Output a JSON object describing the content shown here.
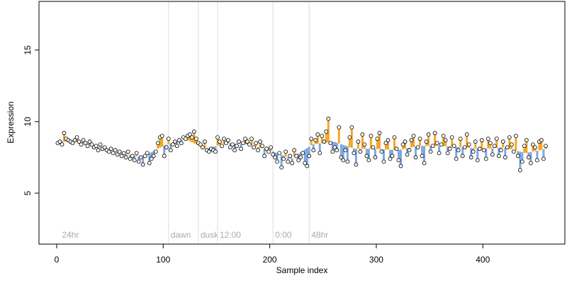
{
  "chart_data": {
    "type": "scatter",
    "xlabel": "Sample index",
    "ylabel": "Expression",
    "xlim": [
      -16.6,
      477
    ],
    "ylim": [
      1.44,
      18.4
    ],
    "xticks": [
      0,
      100,
      200,
      300,
      400
    ],
    "yticks": [
      5,
      10,
      15
    ],
    "point_color": "#000000",
    "above_color": "#f5a623",
    "below_color": "#7ea8e0",
    "vline_color": "#dddddd",
    "x": [
      1,
      3,
      5,
      7,
      9,
      11,
      13,
      15,
      17,
      19,
      21,
      23,
      25,
      27,
      29,
      31,
      33,
      35,
      37,
      39,
      41,
      43,
      45,
      47,
      49,
      51,
      53,
      55,
      57,
      59,
      61,
      63,
      65,
      67,
      69,
      71,
      73,
      75,
      77,
      79,
      81,
      83,
      85,
      87,
      89,
      91,
      93,
      95,
      97,
      99,
      101,
      103,
      105,
      107,
      109,
      111,
      113,
      115,
      117,
      119,
      121,
      123,
      125,
      127,
      129,
      131,
      133,
      135,
      137,
      139,
      141,
      143,
      145,
      147,
      149,
      151,
      153,
      155,
      157,
      159,
      161,
      163,
      165,
      167,
      169,
      171,
      173,
      175,
      177,
      179,
      181,
      183,
      185,
      187,
      189,
      191,
      193,
      195,
      197,
      199,
      201,
      203,
      205,
      207,
      209,
      211,
      213,
      215,
      217,
      219,
      221,
      223,
      225,
      227,
      229,
      231,
      233,
      235,
      237,
      239,
      241,
      243,
      245,
      247,
      249,
      251,
      253,
      255,
      257,
      259,
      261,
      263,
      265,
      267,
      269,
      271,
      273,
      275,
      277,
      279,
      281,
      283,
      285,
      287,
      289,
      291,
      293,
      295,
      297,
      299,
      301,
      303,
      305,
      307,
      309,
      311,
      313,
      315,
      317,
      319,
      321,
      323,
      325,
      327,
      329,
      331,
      333,
      335,
      337,
      339,
      341,
      343,
      345,
      347,
      349,
      351,
      353,
      355,
      357,
      359,
      361,
      363,
      365,
      367,
      369,
      371,
      373,
      375,
      377,
      379,
      381,
      383,
      385,
      387,
      389,
      391,
      393,
      395,
      397,
      399,
      401,
      403,
      405,
      407,
      409,
      411,
      413,
      415,
      417,
      419,
      421,
      423,
      425,
      427,
      429,
      431,
      433,
      435,
      437,
      439,
      441,
      443,
      445,
      447,
      449,
      451,
      453,
      455,
      457,
      459
    ],
    "values": [
      8.5,
      8.6,
      8.4,
      9.2,
      8.8,
      8.7,
      8.6,
      8.5,
      8.7,
      8.9,
      8.6,
      8.4,
      8.7,
      8.5,
      8.3,
      8.6,
      8.4,
      8.2,
      8.3,
      8.0,
      8.4,
      8.1,
      8.2,
      8.0,
      7.9,
      8.1,
      7.8,
      8.0,
      7.7,
      7.9,
      7.6,
      7.8,
      7.5,
      7.9,
      7.4,
      7.6,
      7.3,
      7.8,
      7.2,
      7.5,
      7.0,
      7.6,
      7.8,
      7.1,
      7.4,
      7.6,
      7.9,
      8.5,
      8.9,
      9.0,
      7.6,
      8.2,
      8.8,
      8.0,
      8.4,
      8.6,
      8.3,
      8.7,
      8.5,
      8.9,
      8.8,
      9.0,
      9.1,
      8.9,
      9.3,
      8.8,
      8.5,
      8.4,
      8.2,
      8.6,
      8.0,
      7.9,
      8.1,
      8.0,
      7.9,
      8.9,
      8.6,
      8.3,
      8.8,
      8.5,
      8.7,
      8.2,
      8.4,
      8.0,
      8.3,
      8.6,
      8.1,
      8.5,
      8.8,
      8.6,
      8.4,
      8.8,
      8.2,
      8.5,
      8.0,
      8.6,
      8.3,
      7.6,
      8.1,
      7.9,
      8.2,
      7.7,
      7.5,
      7.2,
      7.8,
      6.8,
      7.4,
      7.9,
      7.2,
      7.6,
      7.1,
      8.0,
      7.6,
      7.3,
      7.5,
      7.8,
      7.1,
      6.9,
      7.6,
      8.8,
      8.0,
      8.7,
      9.1,
      7.8,
      9.0,
      8.6,
      9.3,
      10.2,
      8.5,
      7.9,
      8.2,
      8.0,
      9.6,
      7.5,
      7.3,
      8.0,
      7.2,
      8.9,
      9.6,
      7.8,
      7.0,
      8.6,
      7.9,
      9.1,
      8.4,
      7.6,
      7.3,
      9.0,
      8.2,
      7.5,
      8.8,
      9.2,
      7.9,
      7.2,
      8.5,
      8.7,
      7.4,
      7.6,
      8.9,
      8.1,
      7.3,
      6.9,
      8.4,
      8.6,
      7.7,
      8.0,
      8.7,
      9.0,
      7.5,
      8.2,
      8.8,
      7.6,
      7.1,
      8.6,
      9.1,
      7.9,
      8.3,
      9.2,
      8.5,
      7.8,
      8.4,
      9.0,
      8.7,
      7.8,
      8.1,
      8.9,
      8.3,
      7.4,
      8.0,
      8.8,
      7.6,
      8.2,
      9.1,
      8.4,
      7.5,
      7.9,
      8.6,
      7.3,
      8.1,
      8.7,
      8.0,
      7.4,
      8.8,
      8.5,
      7.7,
      8.3,
      8.8,
      7.6,
      8.0,
      8.6,
      7.5,
      8.2,
      8.9,
      8.4,
      7.9,
      9.0,
      7.6,
      6.6,
      7.2,
      8.3,
      8.7,
      7.5,
      7.1,
      8.4,
      8.2,
      7.3,
      8.6,
      8.7,
      7.4,
      8.3
    ],
    "trend": {
      "x": [
        0,
        20,
        40,
        60,
        80,
        100,
        120,
        140,
        160,
        180,
        200,
        220,
        240,
        260,
        280,
        300,
        320,
        340,
        360,
        380,
        400,
        420,
        440,
        460
      ],
      "values": [
        8.6,
        8.6,
        8.2,
        7.8,
        7.5,
        8.3,
        8.8,
        8.1,
        8.5,
        8.4,
        8.0,
        7.4,
        8.4,
        8.6,
        8.1,
        8.1,
        8.0,
        8.3,
        8.3,
        8.2,
        8.1,
        8.2,
        7.8,
        8.1
      ]
    },
    "annotations": [
      {
        "x": 3,
        "label": "24hr",
        "vline": false
      },
      {
        "x": 105,
        "label": "dawn",
        "vline": true
      },
      {
        "x": 133,
        "label": "dusk",
        "vline": true
      },
      {
        "x": 151,
        "label": "12:00",
        "vline": true
      },
      {
        "x": 203,
        "label": "0:00",
        "vline": true
      },
      {
        "x": 237,
        "label": "48hr",
        "vline": true
      }
    ]
  }
}
